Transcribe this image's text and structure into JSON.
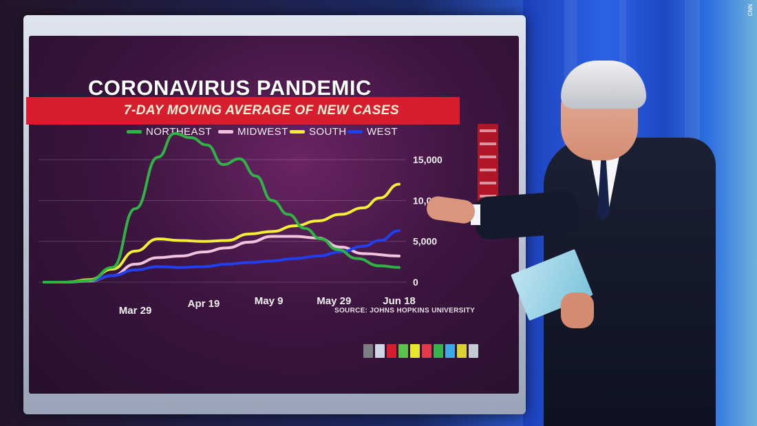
{
  "broadcast": {
    "logo_text": "CNN",
    "sidebar_menu_items": [
      "HOME",
      "TREND MAP",
      "REGIONAL NEW CASES",
      "US NEW CASES",
      "DAILY NEW CASES",
      "US BY REGION"
    ],
    "swatch_colors": [
      "#7d7d85",
      "#cfd7e2",
      "#d81e2e",
      "#5ac24b",
      "#e7e62c",
      "#e23a4a",
      "#38b24c",
      "#3fa9e8",
      "#d8d332",
      "#c6cbd3"
    ]
  },
  "chart_data": {
    "type": "line",
    "title": "CORONAVIRUS PANDEMIC",
    "subtitle": "7-DAY MOVING AVERAGE OF NEW CASES",
    "source": "SOURCE: JOHNS HOPKINS UNIVERSITY",
    "xlabel": "",
    "ylabel": "",
    "ylim": [
      0,
      15000
    ],
    "yticks": [
      0,
      5000,
      10000,
      15000
    ],
    "ytick_labels": [
      "0",
      "5,000",
      "10,000",
      "15,000"
    ],
    "xlim": [
      "2020-03-01",
      "2020-06-18"
    ],
    "xtick_dates": [
      "2020-03-29",
      "2020-04-19",
      "2020-05-09",
      "2020-05-29",
      "2020-06-18"
    ],
    "xtick_labels": [
      "Mar 29",
      "Apr 19",
      "May 9",
      "May 29",
      "Jun 18"
    ],
    "grid": true,
    "legend_position": "top",
    "series": [
      {
        "name": "NORTHEAST",
        "color": "#2fb344",
        "x": [
          "2020-03-01",
          "2020-03-08",
          "2020-03-15",
          "2020-03-22",
          "2020-03-29",
          "2020-04-05",
          "2020-04-10",
          "2020-04-15",
          "2020-04-20",
          "2020-04-25",
          "2020-04-30",
          "2020-05-05",
          "2020-05-10",
          "2020-05-15",
          "2020-05-20",
          "2020-05-25",
          "2020-05-30",
          "2020-06-05",
          "2020-06-12",
          "2020-06-18"
        ],
        "values": [
          0,
          0,
          200,
          1800,
          9000,
          15300,
          18200,
          17700,
          16800,
          14400,
          15100,
          13000,
          10000,
          8300,
          6600,
          5300,
          4000,
          2900,
          2000,
          1800
        ]
      },
      {
        "name": "MIDWEST",
        "color": "#f2c3dc",
        "x": [
          "2020-03-01",
          "2020-03-08",
          "2020-03-15",
          "2020-03-22",
          "2020-03-29",
          "2020-04-05",
          "2020-04-12",
          "2020-04-19",
          "2020-04-26",
          "2020-05-03",
          "2020-05-10",
          "2020-05-17",
          "2020-05-24",
          "2020-05-31",
          "2020-06-07",
          "2020-06-18"
        ],
        "values": [
          0,
          0,
          150,
          800,
          2200,
          3000,
          3200,
          3700,
          4200,
          4900,
          5600,
          5600,
          5400,
          4300,
          3500,
          3200
        ]
      },
      {
        "name": "SOUTH",
        "color": "#f4ee34",
        "x": [
          "2020-03-01",
          "2020-03-08",
          "2020-03-15",
          "2020-03-22",
          "2020-03-29",
          "2020-04-05",
          "2020-04-12",
          "2020-04-19",
          "2020-04-26",
          "2020-05-03",
          "2020-05-10",
          "2020-05-17",
          "2020-05-24",
          "2020-05-31",
          "2020-06-07",
          "2020-06-12",
          "2020-06-18"
        ],
        "values": [
          0,
          0,
          300,
          1600,
          3800,
          5300,
          5100,
          5000,
          5100,
          5900,
          6200,
          6900,
          7500,
          8300,
          9100,
          10300,
          12000
        ]
      },
      {
        "name": "WEST",
        "color": "#1f3ff0",
        "x": [
          "2020-03-01",
          "2020-03-08",
          "2020-03-15",
          "2020-03-22",
          "2020-03-29",
          "2020-04-05",
          "2020-04-12",
          "2020-04-19",
          "2020-04-26",
          "2020-05-03",
          "2020-05-10",
          "2020-05-17",
          "2020-05-24",
          "2020-05-31",
          "2020-06-07",
          "2020-06-12",
          "2020-06-18"
        ],
        "values": [
          0,
          0,
          200,
          800,
          1500,
          1900,
          1800,
          1900,
          2200,
          2400,
          2600,
          2900,
          3200,
          3700,
          4400,
          5100,
          6300
        ]
      }
    ]
  }
}
